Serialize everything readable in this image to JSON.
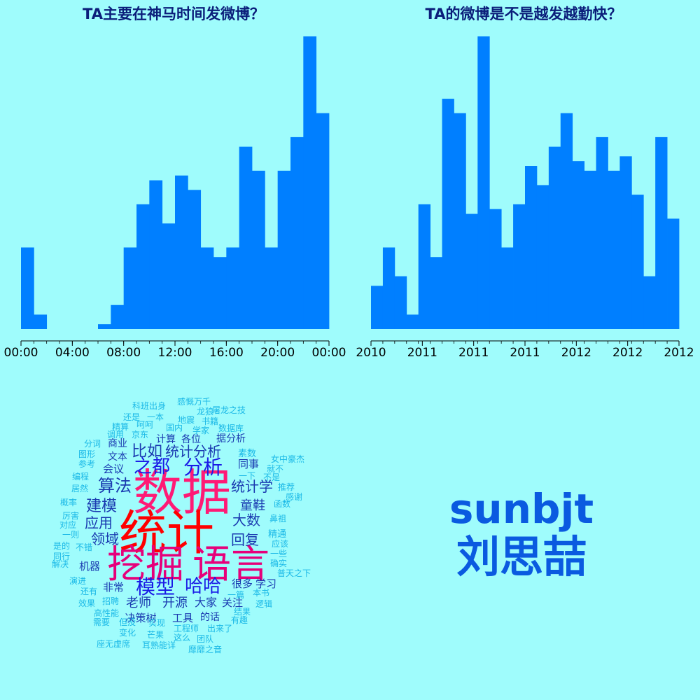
{
  "colors": {
    "background": "#9ffcfc",
    "bar": "#007fff",
    "title": "#0b1e7a",
    "axis": "#000000",
    "signature": "#0a5ae0",
    "cloud_red": "#ff0000",
    "cloud_pink": "#ff1a75",
    "cloud_magenta": "#e6007a",
    "cloud_blue": "#1a1ae6",
    "cloud_navy": "#1a3ab0",
    "cloud_cyan": "#1ab8e6"
  },
  "chart_data": [
    {
      "type": "bar",
      "title": "TA主要在神马时间发微博？",
      "xlabel": "",
      "ylabel": "",
      "tick_labels": [
        "00:00",
        "04:00",
        "08:00",
        "12:00",
        "16:00",
        "20:00",
        "00:00"
      ],
      "values": [
        17,
        3,
        0,
        0,
        0,
        0,
        1,
        5,
        17,
        26,
        31,
        22,
        32,
        29,
        17,
        15,
        17,
        38,
        33,
        17,
        33,
        40,
        61,
        45
      ],
      "ylim": [
        0,
        61
      ],
      "grid": false
    },
    {
      "type": "bar",
      "title": "TA的微博是不是越发越勤快？",
      "xlabel": "",
      "ylabel": "",
      "tick_labels": [
        "2010",
        "2011",
        "2011",
        "2011",
        "2012",
        "2012",
        "2012"
      ],
      "values": [
        9,
        17,
        11,
        3,
        26,
        15,
        48,
        45,
        24,
        61,
        25,
        17,
        26,
        34,
        30,
        38,
        45,
        35,
        33,
        40,
        33,
        36,
        28,
        11,
        40,
        23
      ],
      "ylim": [
        0,
        61
      ],
      "grid": false
    }
  ],
  "wordcloud": [
    {
      "text": "数据",
      "size": 70,
      "color": "cloud_pink"
    },
    {
      "text": "统计",
      "size": 68,
      "color": "cloud_red"
    },
    {
      "text": "挖掘",
      "size": 55,
      "color": "cloud_magenta"
    },
    {
      "text": "语言",
      "size": 55,
      "color": "cloud_magenta"
    },
    {
      "text": "模型",
      "size": 28,
      "color": "cloud_blue"
    },
    {
      "text": "哈哈",
      "size": 26,
      "color": "cloud_blue"
    },
    {
      "text": "分析",
      "size": 28,
      "color": "cloud_blue"
    },
    {
      "text": "之都",
      "size": 26,
      "color": "cloud_blue"
    },
    {
      "text": "算法",
      "size": 24,
      "color": "cloud_navy"
    },
    {
      "text": "比如",
      "size": 22,
      "color": "cloud_navy"
    },
    {
      "text": "统计分析",
      "size": 20,
      "color": "cloud_navy"
    },
    {
      "text": "建模",
      "size": 22,
      "color": "cloud_navy"
    },
    {
      "text": "应用",
      "size": 20,
      "color": "cloud_navy"
    },
    {
      "text": "领域",
      "size": 20,
      "color": "cloud_navy"
    },
    {
      "text": "统计学",
      "size": 20,
      "color": "cloud_navy"
    },
    {
      "text": "童鞋",
      "size": 18,
      "color": "cloud_navy"
    },
    {
      "text": "大数",
      "size": 20,
      "color": "cloud_navy"
    },
    {
      "text": "回复",
      "size": 20,
      "color": "cloud_navy"
    },
    {
      "text": "老师",
      "size": 18,
      "color": "cloud_navy"
    },
    {
      "text": "开源",
      "size": 18,
      "color": "cloud_navy"
    },
    {
      "text": "大家",
      "size": 16,
      "color": "cloud_navy"
    },
    {
      "text": "关注",
      "size": 15,
      "color": "cloud_navy"
    },
    {
      "text": "很多",
      "size": 15,
      "color": "cloud_navy"
    },
    {
      "text": "学习",
      "size": 15,
      "color": "cloud_navy"
    },
    {
      "text": "决策树",
      "size": 15,
      "color": "cloud_navy"
    },
    {
      "text": "工具",
      "size": 15,
      "color": "cloud_navy"
    },
    {
      "text": "的话",
      "size": 14,
      "color": "cloud_navy"
    },
    {
      "text": "非常",
      "size": 15,
      "color": "cloud_navy"
    },
    {
      "text": "机器",
      "size": 15,
      "color": "cloud_navy"
    },
    {
      "text": "同事",
      "size": 15,
      "color": "cloud_navy"
    },
    {
      "text": "计算",
      "size": 14,
      "color": "cloud_navy"
    },
    {
      "text": "各位",
      "size": 14,
      "color": "cloud_navy"
    },
    {
      "text": "据分析",
      "size": 14,
      "color": "cloud_navy"
    },
    {
      "text": "会议",
      "size": 15,
      "color": "cloud_navy"
    },
    {
      "text": "文本",
      "size": 14,
      "color": "cloud_navy"
    },
    {
      "text": "商业",
      "size": 14,
      "color": "cloud_navy"
    },
    {
      "text": "科班出身",
      "size": 12,
      "color": "cloud_cyan"
    },
    {
      "text": "感慨万千",
      "size": 12,
      "color": "cloud_cyan"
    },
    {
      "text": "还是",
      "size": 12,
      "color": "cloud_cyan"
    },
    {
      "text": "一本",
      "size": 12,
      "color": "cloud_cyan"
    },
    {
      "text": "屠龙之技",
      "size": 12,
      "color": "cloud_cyan"
    },
    {
      "text": "龙狼",
      "size": 12,
      "color": "cloud_cyan"
    },
    {
      "text": "地震",
      "size": 12,
      "color": "cloud_cyan"
    },
    {
      "text": "书籍",
      "size": 12,
      "color": "cloud_cyan"
    },
    {
      "text": "精算",
      "size": 12,
      "color": "cloud_cyan"
    },
    {
      "text": "呵呵",
      "size": 12,
      "color": "cloud_cyan"
    },
    {
      "text": "国内",
      "size": 12,
      "color": "cloud_cyan"
    },
    {
      "text": "学家",
      "size": 12,
      "color": "cloud_cyan"
    },
    {
      "text": "数据库",
      "size": 12,
      "color": "cloud_cyan"
    },
    {
      "text": "调用",
      "size": 12,
      "color": "cloud_cyan"
    },
    {
      "text": "京东",
      "size": 12,
      "color": "cloud_cyan"
    },
    {
      "text": "分词",
      "size": 12,
      "color": "cloud_cyan"
    },
    {
      "text": "图形",
      "size": 12,
      "color": "cloud_cyan"
    },
    {
      "text": "参考",
      "size": 12,
      "color": "cloud_cyan"
    },
    {
      "text": "编程",
      "size": 12,
      "color": "cloud_cyan"
    },
    {
      "text": "居然",
      "size": 12,
      "color": "cloud_cyan"
    },
    {
      "text": "概率",
      "size": 12,
      "color": "cloud_cyan"
    },
    {
      "text": "厉害",
      "size": 12,
      "color": "cloud_cyan"
    },
    {
      "text": "对应",
      "size": 12,
      "color": "cloud_cyan"
    },
    {
      "text": "一则",
      "size": 12,
      "color": "cloud_cyan"
    },
    {
      "text": "是的",
      "size": 12,
      "color": "cloud_cyan"
    },
    {
      "text": "不错",
      "size": 12,
      "color": "cloud_cyan"
    },
    {
      "text": "同行",
      "size": 12,
      "color": "cloud_cyan"
    },
    {
      "text": "解决",
      "size": 12,
      "color": "cloud_cyan"
    },
    {
      "text": "演进",
      "size": 12,
      "color": "cloud_cyan"
    },
    {
      "text": "还有",
      "size": 12,
      "color": "cloud_cyan"
    },
    {
      "text": "效果",
      "size": 12,
      "color": "cloud_cyan"
    },
    {
      "text": "招聘",
      "size": 12,
      "color": "cloud_cyan"
    },
    {
      "text": "高性能",
      "size": 12,
      "color": "cloud_cyan"
    },
    {
      "text": "需要",
      "size": 12,
      "color": "cloud_cyan"
    },
    {
      "text": "但没",
      "size": 12,
      "color": "cloud_cyan"
    },
    {
      "text": "实现",
      "size": 12,
      "color": "cloud_cyan"
    },
    {
      "text": "变化",
      "size": 12,
      "color": "cloud_cyan"
    },
    {
      "text": "芒果",
      "size": 12,
      "color": "cloud_cyan"
    },
    {
      "text": "工程师",
      "size": 12,
      "color": "cloud_cyan"
    },
    {
      "text": "出来了",
      "size": 12,
      "color": "cloud_cyan"
    },
    {
      "text": "这么",
      "size": 12,
      "color": "cloud_cyan"
    },
    {
      "text": "团队",
      "size": 12,
      "color": "cloud_cyan"
    },
    {
      "text": "座无虚席",
      "size": 12,
      "color": "cloud_cyan"
    },
    {
      "text": "耳熟能详",
      "size": 12,
      "color": "cloud_cyan"
    },
    {
      "text": "靡靡之音",
      "size": 12,
      "color": "cloud_cyan"
    },
    {
      "text": "素数",
      "size": 13,
      "color": "cloud_cyan"
    },
    {
      "text": "女中豪杰",
      "size": 12,
      "color": "cloud_cyan"
    },
    {
      "text": "一下",
      "size": 12,
      "color": "cloud_cyan"
    },
    {
      "text": "就不",
      "size": 12,
      "color": "cloud_cyan"
    },
    {
      "text": "不是",
      "size": 12,
      "color": "cloud_cyan"
    },
    {
      "text": "推荐",
      "size": 12,
      "color": "cloud_cyan"
    },
    {
      "text": "感谢",
      "size": 12,
      "color": "cloud_cyan"
    },
    {
      "text": "函数",
      "size": 12,
      "color": "cloud_cyan"
    },
    {
      "text": "鼻祖",
      "size": 12,
      "color": "cloud_cyan"
    },
    {
      "text": "精通",
      "size": 13,
      "color": "cloud_cyan"
    },
    {
      "text": "应该",
      "size": 12,
      "color": "cloud_cyan"
    },
    {
      "text": "一些",
      "size": 12,
      "color": "cloud_cyan"
    },
    {
      "text": "确实",
      "size": 12,
      "color": "cloud_cyan"
    },
    {
      "text": "普天之下",
      "size": 12,
      "color": "cloud_cyan"
    },
    {
      "text": "一篇",
      "size": 12,
      "color": "cloud_cyan"
    },
    {
      "text": "本书",
      "size": 12,
      "color": "cloud_cyan"
    },
    {
      "text": "逻辑",
      "size": 12,
      "color": "cloud_cyan"
    },
    {
      "text": "结果",
      "size": 12,
      "color": "cloud_cyan"
    },
    {
      "text": "有趣",
      "size": 12,
      "color": "cloud_cyan"
    }
  ],
  "signature": {
    "handle": "sunbjt",
    "name": "刘思喆"
  }
}
